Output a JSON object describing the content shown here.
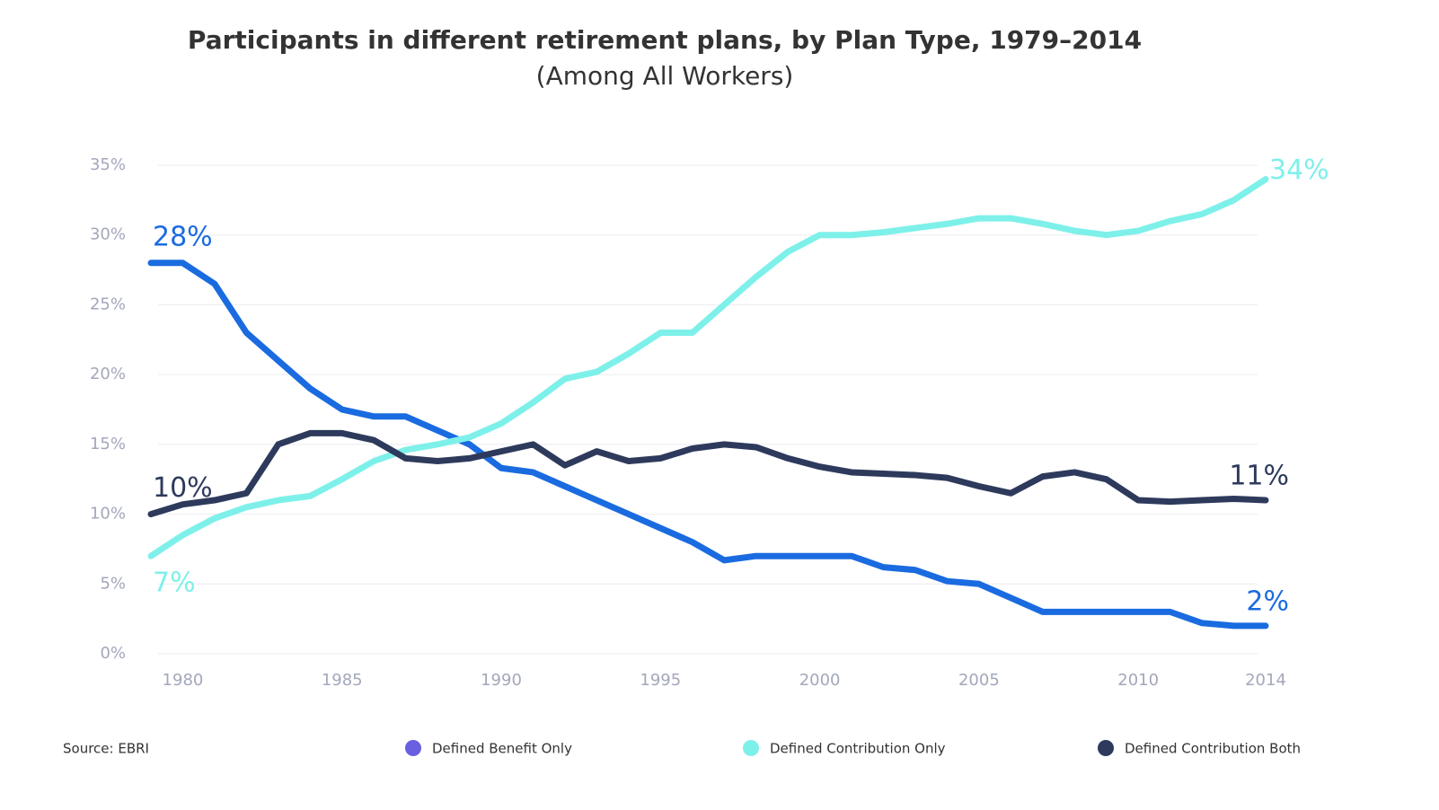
{
  "chart_data": {
    "type": "line",
    "title": "Participants in different retirement plans, by Plan Type, 1979–2014",
    "subtitle": "(Among All Workers)",
    "source": "Source: EBRI",
    "x": [
      1979,
      1980,
      1981,
      1982,
      1983,
      1984,
      1985,
      1986,
      1987,
      1988,
      1989,
      1990,
      1991,
      1992,
      1993,
      1994,
      1995,
      1996,
      1997,
      1998,
      1999,
      2000,
      2001,
      2002,
      2003,
      2004,
      2005,
      2006,
      2007,
      2008,
      2009,
      2010,
      2011,
      2012,
      2013,
      2014
    ],
    "xlim": [
      1979,
      2014
    ],
    "xticks": [
      1980,
      1985,
      1990,
      1995,
      2000,
      2005,
      2010,
      2014
    ],
    "ylim": [
      0,
      35
    ],
    "yticks": [
      {
        "value": 0,
        "label": "0%"
      },
      {
        "value": 5,
        "label": "5%"
      },
      {
        "value": 10,
        "label": "10%"
      },
      {
        "value": 15,
        "label": "15%"
      },
      {
        "value": 20,
        "label": "20%"
      },
      {
        "value": 25,
        "label": "25%"
      },
      {
        "value": 30,
        "label": "30%"
      },
      {
        "value": 35,
        "label": "35%"
      }
    ],
    "grid": true,
    "legend": "bottom",
    "series": [
      {
        "name": "Defined Benefit Only",
        "color": "#1a6be0",
        "marker_color": "#6a5fe0",
        "values": [
          28,
          28,
          26.5,
          23,
          21,
          19,
          17.5,
          17,
          17,
          16,
          15,
          13.3,
          13,
          12,
          11,
          10,
          9,
          8,
          6.7,
          7,
          7,
          7,
          7,
          6.2,
          6,
          5.2,
          5,
          4,
          3,
          3,
          3,
          3,
          3,
          2.2,
          2,
          2
        ],
        "value_labels": [
          "28%",
          null,
          null,
          null,
          null,
          null,
          null,
          null,
          null,
          null,
          null,
          null,
          null,
          null,
          null,
          null,
          null,
          null,
          null,
          null,
          null,
          null,
          null,
          null,
          null,
          null,
          null,
          null,
          null,
          null,
          null,
          null,
          null,
          null,
          null,
          "2%"
        ]
      },
      {
        "name": "Defined Contribution Only",
        "color": "#7ef0ea",
        "marker_color": "#7ef0ea",
        "values": [
          7,
          8.5,
          9.7,
          10.5,
          11,
          11.3,
          12.5,
          13.8,
          14.6,
          15,
          15.5,
          16.5,
          18,
          19.7,
          20.2,
          21.5,
          23,
          23,
          25,
          27,
          28.8,
          30,
          30,
          30.2,
          30.5,
          30.8,
          31.2,
          31.2,
          30.8,
          30.3,
          30,
          30.3,
          31,
          31.5,
          32.5,
          34
        ],
        "value_labels": [
          "7%",
          null,
          null,
          null,
          null,
          null,
          null,
          null,
          null,
          null,
          null,
          null,
          null,
          null,
          null,
          null,
          null,
          null,
          null,
          null,
          null,
          null,
          null,
          null,
          null,
          null,
          null,
          null,
          null,
          null,
          null,
          null,
          null,
          null,
          null,
          "34%"
        ]
      },
      {
        "name": "Defined Contribution Both",
        "color": "#2e3a5c",
        "marker_color": "#2e3a5c",
        "values": [
          10,
          10.7,
          11,
          11.5,
          15,
          15.8,
          15.8,
          15.3,
          14,
          13.8,
          14,
          14.5,
          15,
          13.5,
          14.5,
          13.8,
          14,
          14.7,
          15,
          14.8,
          14,
          13.4,
          13,
          12.9,
          12.8,
          12.6,
          12,
          11.5,
          12.7,
          13,
          12.5,
          11,
          10.9,
          11,
          11.1,
          11
        ],
        "value_labels": [
          "10%",
          null,
          null,
          null,
          null,
          null,
          null,
          null,
          null,
          null,
          null,
          null,
          null,
          null,
          null,
          null,
          null,
          null,
          null,
          null,
          null,
          null,
          null,
          null,
          null,
          null,
          null,
          null,
          null,
          null,
          null,
          null,
          null,
          null,
          null,
          "11%"
        ]
      }
    ]
  }
}
